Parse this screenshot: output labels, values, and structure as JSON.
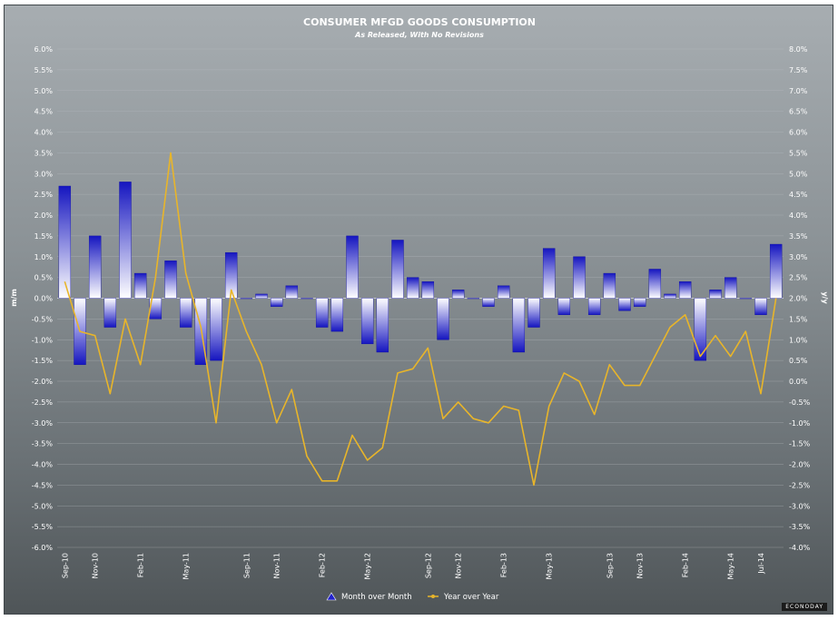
{
  "chart_data": {
    "type": "bar",
    "title": "CONSUMER MFGD GOODS CONSUMPTION",
    "subtitle": "As Released, With No Revisions",
    "ylabel_left": "m/m",
    "ylabel_right": "y/y",
    "ylim_left": [
      -6.0,
      6.0
    ],
    "ylim_right": [
      -4.0,
      8.0
    ],
    "tick_step": 0.5,
    "grid": true,
    "legend_position": "bottom",
    "x_tick_labels": [
      "Sep-10",
      "Nov-10",
      "Feb-11",
      "May-11",
      "Sep-11",
      "Nov-11",
      "Feb-12",
      "May-12",
      "Sep-12",
      "Nov-12",
      "Feb-13",
      "May-13",
      "Sep-13",
      "Nov-13",
      "Feb-14",
      "May-14",
      "Jul-14"
    ],
    "series": [
      {
        "name": "Month over Month",
        "type": "bar",
        "axis": "left",
        "color": "#1c1cc8",
        "values": [
          2.7,
          -1.6,
          1.5,
          -0.7,
          2.8,
          0.6,
          -0.5,
          0.9,
          -0.7,
          -1.6,
          -1.5,
          1.1,
          0.0,
          0.1,
          -0.2,
          0.3,
          0.0,
          -0.7,
          -0.8,
          1.5,
          -1.1,
          -1.3,
          1.4,
          0.5,
          0.4,
          -1.0,
          0.2,
          0.0,
          -0.2,
          0.3,
          -1.3,
          -0.7,
          1.2,
          -0.4,
          1.0,
          -0.4,
          0.6,
          -0.3,
          -0.2,
          0.7,
          0.1,
          0.4,
          -1.5,
          0.2,
          0.5,
          0.0,
          -0.4,
          1.3
        ]
      },
      {
        "name": "Year over Year",
        "type": "line",
        "axis": "right",
        "color": "#e8b52a",
        "values": [
          2.4,
          1.2,
          1.1,
          -0.3,
          1.5,
          0.4,
          2.5,
          5.5,
          2.6,
          1.3,
          -1.0,
          2.2,
          1.2,
          0.4,
          -1.0,
          -0.2,
          -1.8,
          -2.4,
          -2.4,
          -1.3,
          -1.9,
          -1.6,
          0.2,
          0.3,
          0.8,
          -0.9,
          -0.5,
          -0.9,
          -1.0,
          -0.6,
          -0.7,
          -2.5,
          -0.6,
          0.2,
          0.0,
          -0.8,
          0.4,
          -0.1,
          -0.1,
          0.6,
          1.3,
          1.6,
          0.6,
          1.1,
          0.6,
          1.2,
          -0.3,
          2.0
        ]
      }
    ]
  },
  "brand": "ECONODAY"
}
